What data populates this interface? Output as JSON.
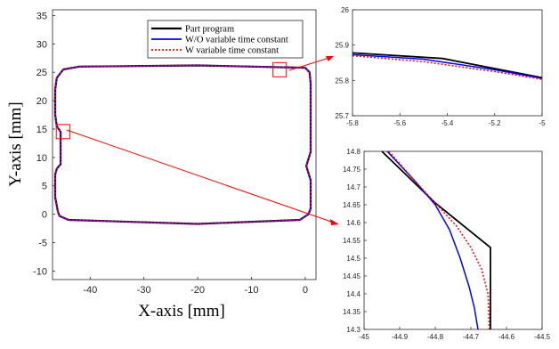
{
  "chart_data": [
    {
      "id": "main",
      "type": "line",
      "title": "",
      "xlabel": "X-axis [mm]",
      "ylabel": "Y-axis [mm]",
      "xlim": [
        -47,
        2
      ],
      "ylim": [
        -11.5,
        36
      ],
      "xticks": [
        -40,
        -30,
        -20,
        -10,
        0
      ],
      "yticks": [
        -10,
        -5,
        0,
        5,
        10,
        15,
        20,
        25,
        30,
        35
      ],
      "grid": false,
      "legend": {
        "position": "top-right"
      },
      "series": [
        {
          "name": "Part program",
          "color": "#000000",
          "style": "solid"
        },
        {
          "name": "W/O variable time constant",
          "color": "#0000ff",
          "style": "solid"
        },
        {
          "name": "W variable time constant",
          "color": "#ff0000",
          "style": "dotted"
        }
      ],
      "path": {
        "x": [
          -46.0,
          -46.5,
          -46.5,
          -46.2,
          -45.5,
          -45.5,
          -46.2,
          -46.5,
          -46.5,
          -46.2,
          -45.0,
          -42.0,
          -20.0,
          0.0,
          0.8,
          1.0,
          1.0,
          0.2,
          1.0,
          1.0,
          0.6,
          -1.0,
          -20.0,
          -44.0,
          -45.7,
          -46.0
        ],
        "y": [
          0.5,
          3.0,
          7.0,
          8.0,
          8.8,
          14.5,
          15.5,
          17.5,
          22.0,
          24.0,
          25.5,
          26.0,
          26.2,
          25.8,
          25.0,
          23.0,
          11.0,
          8.5,
          6.0,
          1.0,
          0.0,
          -1.0,
          -1.7,
          -1.0,
          -0.3,
          0.5
        ]
      },
      "zoom_boxes": [
        {
          "x": [
            -6,
            -3.5
          ],
          "y": [
            24.2,
            26.7
          ]
        },
        {
          "x": [
            -46.3,
            -43.8
          ],
          "y": [
            13.3,
            15.8
          ]
        }
      ]
    },
    {
      "id": "zoom1",
      "type": "line",
      "xlim": [
        -5.8,
        -5
      ],
      "ylim": [
        25.7,
        26
      ],
      "xticks": [
        -5.8,
        -5.6,
        -5.4,
        -5.2,
        -5
      ],
      "yticks": [
        25.7,
        25.8,
        25.9,
        26
      ],
      "xtick_labels": [
        "-5.8",
        "-5.6",
        "-5.4",
        "-5.2",
        "-5"
      ],
      "ytick_labels": [
        "25.7",
        "25.8",
        "25.9",
        "26"
      ],
      "series": [
        {
          "name": "Part program",
          "color": "#000000",
          "style": "solid",
          "x": [
            -5.8,
            -5.42,
            -5.0
          ],
          "y": [
            25.878,
            25.862,
            25.808
          ]
        },
        {
          "name": "W/O variable time constant",
          "color": "#0000ff",
          "style": "solid",
          "x": [
            -5.8,
            -5.5,
            -5.2,
            -5.0
          ],
          "y": [
            25.873,
            25.86,
            25.83,
            25.806
          ]
        },
        {
          "name": "W variable time constant",
          "color": "#ff0000",
          "style": "dotted",
          "x": [
            -5.8,
            -5.5,
            -5.2,
            -5.0
          ],
          "y": [
            25.87,
            25.853,
            25.825,
            25.803
          ]
        }
      ]
    },
    {
      "id": "zoom2",
      "type": "line",
      "xlim": [
        -45,
        -44.5
      ],
      "ylim": [
        14.3,
        14.8
      ],
      "xticks": [
        -45,
        -44.9,
        -44.8,
        -44.7,
        -44.6,
        -44.5
      ],
      "yticks": [
        14.3,
        14.35,
        14.4,
        14.45,
        14.5,
        14.55,
        14.6,
        14.65,
        14.7,
        14.75,
        14.8
      ],
      "xtick_labels": [
        "-45",
        "-44.9",
        "-44.8",
        "-44.7",
        "-44.6",
        "-44.5"
      ],
      "ytick_labels": [
        "14.3",
        "14.35",
        "14.4",
        "14.45",
        "14.5",
        "14.55",
        "14.6",
        "14.65",
        "14.7",
        "14.75",
        "14.8"
      ],
      "series": [
        {
          "name": "Part program",
          "color": "#000000",
          "style": "solid",
          "x": [
            -44.95,
            -44.8,
            -44.645,
            -44.645
          ],
          "y": [
            14.8,
            14.655,
            14.53,
            14.3
          ]
        },
        {
          "name": "W/O variable time constant",
          "color": "#0000ff",
          "style": "solid",
          "x": [
            -44.935,
            -44.86,
            -44.8,
            -44.76,
            -44.73,
            -44.705,
            -44.69,
            -44.68
          ],
          "y": [
            14.8,
            14.72,
            14.65,
            14.58,
            14.5,
            14.42,
            14.36,
            14.3
          ]
        },
        {
          "name": "W variable time constant",
          "color": "#ff0000",
          "style": "dotted",
          "x": [
            -44.93,
            -44.86,
            -44.8,
            -44.74,
            -44.7,
            -44.67,
            -44.652,
            -44.648
          ],
          "y": [
            14.8,
            14.72,
            14.655,
            14.59,
            14.53,
            14.47,
            14.4,
            14.3
          ]
        }
      ]
    }
  ]
}
